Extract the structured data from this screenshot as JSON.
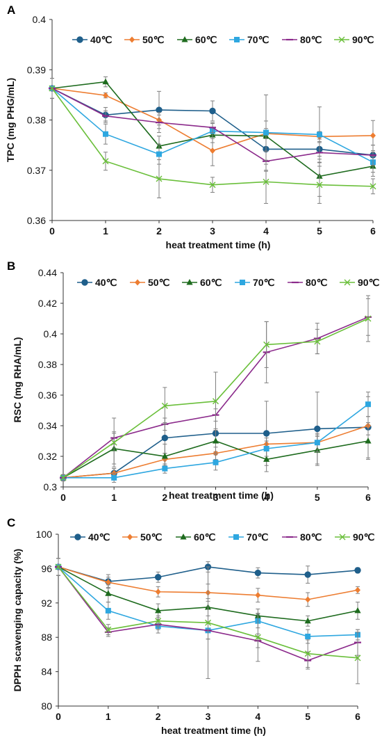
{
  "figure": {
    "x_values": [
      0,
      1,
      2,
      3,
      4,
      5,
      6
    ]
  },
  "chart_data": [
    {
      "type": "line",
      "panel_label": "A",
      "title": "",
      "xlabel": "heat treatment time (h)",
      "ylabel": "TPC (mg PHG/mL)",
      "xlim": [
        0,
        6
      ],
      "ylim": [
        0.36,
        0.4
      ],
      "y_ticks": [
        0.36,
        0.37,
        0.38,
        0.39,
        0.4
      ],
      "y_tick_labels": [
        "0.36",
        "0.37",
        "0.38",
        "0.39",
        "0.4"
      ],
      "x_ticks": [
        0,
        1,
        2,
        3,
        4,
        5,
        6
      ],
      "x_tick_labels": [
        "0",
        "1",
        "2",
        "3",
        "4",
        "5",
        "6"
      ],
      "grid": false,
      "legend_position": "top",
      "x": [
        0,
        1,
        2,
        3,
        4,
        5,
        6
      ],
      "series": [
        {
          "name": "40℃",
          "color": "#1f5f8b",
          "marker": "circle",
          "values": [
            0.3863,
            0.381,
            0.382,
            0.3818,
            0.3742,
            0.3742,
            0.373
          ],
          "errors": [
            0.002,
            0.0015,
            0.0037,
            0.002,
            0.003,
            0.002,
            0.002
          ]
        },
        {
          "name": "50℃",
          "color": "#ed7d31",
          "marker": "diamond",
          "values": [
            0.3863,
            0.3849,
            0.38,
            0.3739,
            0.3773,
            0.3767,
            0.3769
          ],
          "errors": [
            0.002,
            0.0005,
            0.001,
            0.003,
            0.001,
            0.001,
            0.003
          ]
        },
        {
          "name": "60℃",
          "color": "#1e6b1e",
          "marker": "triangle",
          "values": [
            0.3863,
            0.3876,
            0.3748,
            0.377,
            0.3768,
            0.3688,
            0.3708
          ],
          "errors": [
            0.002,
            0.001,
            0.002,
            0.0015,
            0.003,
            0.004,
            0.002
          ]
        },
        {
          "name": "70℃",
          "color": "#2ea7e0",
          "marker": "square",
          "values": [
            0.3863,
            0.3772,
            0.3732,
            0.3778,
            0.3775,
            0.3771,
            0.3716
          ],
          "errors": [
            0.002,
            0.002,
            0.002,
            0.0015,
            0.0075,
            0.0055,
            0.002
          ]
        },
        {
          "name": "80℃",
          "color": "#8b2a8b",
          "marker": "dash",
          "values": [
            0.3863,
            0.3808,
            0.3795,
            0.3785,
            0.3718,
            0.3735,
            0.373
          ],
          "errors": [
            0.002,
            0.001,
            0.002,
            0.001,
            0.002,
            0.002,
            0.002
          ]
        },
        {
          "name": "90℃",
          "color": "#6abf3a",
          "marker": "x",
          "values": [
            0.3863,
            0.3718,
            0.3683,
            0.3671,
            0.3677,
            0.3671,
            0.3668
          ],
          "errors": [
            0.002,
            0.0018,
            0.0038,
            0.0015,
            0.0043,
            0.0037,
            0.0015
          ]
        }
      ]
    },
    {
      "type": "line",
      "panel_label": "B",
      "title": "",
      "xlabel": "heat treatment time (h)",
      "ylabel": "RSC (mg RHA/mL)",
      "xlim": [
        0,
        6
      ],
      "ylim": [
        0.3,
        0.44
      ],
      "y_ticks": [
        0.3,
        0.32,
        0.34,
        0.36,
        0.38,
        0.4,
        0.42,
        0.44
      ],
      "y_tick_labels": [
        "0.3",
        "0.32",
        "0.34",
        "0.36",
        "0.38",
        "0.4",
        "0.42",
        "0.44"
      ],
      "x_ticks": [
        0,
        1,
        2,
        3,
        4,
        5,
        6
      ],
      "x_tick_labels": [
        "0",
        "1",
        "2",
        "3",
        "4",
        "5",
        "6"
      ],
      "grid": false,
      "legend_position": "top",
      "x": [
        0,
        1,
        2,
        3,
        4,
        5,
        6
      ],
      "series": [
        {
          "name": "40℃",
          "color": "#1f5f8b",
          "marker": "circle",
          "values": [
            0.306,
            0.309,
            0.332,
            0.335,
            0.335,
            0.338,
            0.339
          ],
          "errors": [
            0.002,
            0.003,
            0.01,
            0.012,
            0.021,
            0.024,
            0.02
          ]
        },
        {
          "name": "50℃",
          "color": "#ed7d31",
          "marker": "diamond",
          "values": [
            0.306,
            0.309,
            0.318,
            0.322,
            0.328,
            0.329,
            0.34
          ],
          "errors": [
            0.002,
            0.003,
            0.004,
            0.004,
            0.004,
            0.005,
            0.006
          ]
        },
        {
          "name": "60℃",
          "color": "#1e6b1e",
          "marker": "triangle",
          "values": [
            0.306,
            0.325,
            0.32,
            0.33,
            0.318,
            0.324,
            0.33
          ],
          "errors": [
            0.002,
            0.01,
            0.008,
            0.008,
            0.008,
            0.009,
            0.012
          ]
        },
        {
          "name": "70℃",
          "color": "#2ea7e0",
          "marker": "square",
          "values": [
            0.306,
            0.306,
            0.312,
            0.316,
            0.325,
            0.329,
            0.354
          ],
          "errors": [
            0.002,
            0.003,
            0.003,
            0.005,
            0.005,
            0.006,
            0.008
          ]
        },
        {
          "name": "80℃",
          "color": "#8b2a8b",
          "marker": "dash",
          "values": [
            0.306,
            0.332,
            0.341,
            0.347,
            0.388,
            0.397,
            0.411
          ],
          "errors": [
            0.002,
            0.004,
            0.004,
            0.004,
            0.02,
            0.01,
            0.012
          ]
        },
        {
          "name": "90℃",
          "color": "#6abf3a",
          "marker": "x",
          "values": [
            0.306,
            0.329,
            0.353,
            0.356,
            0.393,
            0.395,
            0.41
          ],
          "errors": [
            0.002,
            0.016,
            0.012,
            0.019,
            0.015,
            0.008,
            0.015
          ]
        }
      ]
    },
    {
      "type": "line",
      "panel_label": "C",
      "title": "",
      "xlabel": "heat treatment time (h)",
      "ylabel": "DPPH scavenging capacity (%)",
      "xlim": [
        0,
        6
      ],
      "ylim": [
        80,
        100
      ],
      "y_ticks": [
        80,
        84,
        88,
        92,
        96,
        100
      ],
      "y_tick_labels": [
        "80",
        "84",
        "88",
        "92",
        "96",
        "100"
      ],
      "x_ticks": [
        0,
        1,
        2,
        3,
        4,
        5,
        6
      ],
      "x_tick_labels": [
        "0",
        "1",
        "2",
        "3",
        "4",
        "5",
        "6"
      ],
      "grid": false,
      "legend_position": "top",
      "x": [
        0,
        1,
        2,
        3,
        4,
        5,
        6
      ],
      "series": [
        {
          "name": "40℃",
          "color": "#1f5f8b",
          "marker": "circle",
          "values": [
            96.2,
            94.5,
            95.0,
            96.2,
            95.5,
            95.3,
            95.8
          ],
          "errors": [
            1.0,
            0.8,
            0.6,
            0.6,
            0.6,
            1.0,
            0.3
          ]
        },
        {
          "name": "50℃",
          "color": "#ed7d31",
          "marker": "diamond",
          "values": [
            96.2,
            94.4,
            93.3,
            93.2,
            92.9,
            92.4,
            93.5
          ],
          "errors": [
            1.0,
            0.6,
            0.6,
            1.0,
            0.8,
            0.8,
            0.4
          ]
        },
        {
          "name": "60℃",
          "color": "#1e6b1e",
          "marker": "triangle",
          "values": [
            96.2,
            93.1,
            91.1,
            91.5,
            90.5,
            89.9,
            91.1
          ],
          "errors": [
            1.0,
            1.0,
            0.8,
            1.0,
            0.8,
            0.6,
            1.0
          ]
        },
        {
          "name": "70℃",
          "color": "#2ea7e0",
          "marker": "square",
          "values": [
            96.2,
            91.1,
            89.3,
            88.8,
            89.9,
            88.1,
            88.3
          ],
          "errors": [
            1.0,
            1.0,
            0.8,
            1.0,
            0.8,
            0.8,
            0.6
          ]
        },
        {
          "name": "80℃",
          "color": "#8b2a8b",
          "marker": "dash",
          "values": [
            96.2,
            88.6,
            89.5,
            88.8,
            87.6,
            85.3,
            87.4
          ],
          "errors": [
            1.0,
            0.5,
            0.6,
            1.0,
            0.8,
            1.0,
            1.5
          ]
        },
        {
          "name": "90℃",
          "color": "#6abf3a",
          "marker": "x",
          "values": [
            96.2,
            88.9,
            89.9,
            89.7,
            88.0,
            86.1,
            85.6
          ],
          "errors": [
            1.0,
            0.6,
            0.6,
            6.5,
            2.8,
            1.6,
            3.0
          ]
        }
      ]
    }
  ]
}
